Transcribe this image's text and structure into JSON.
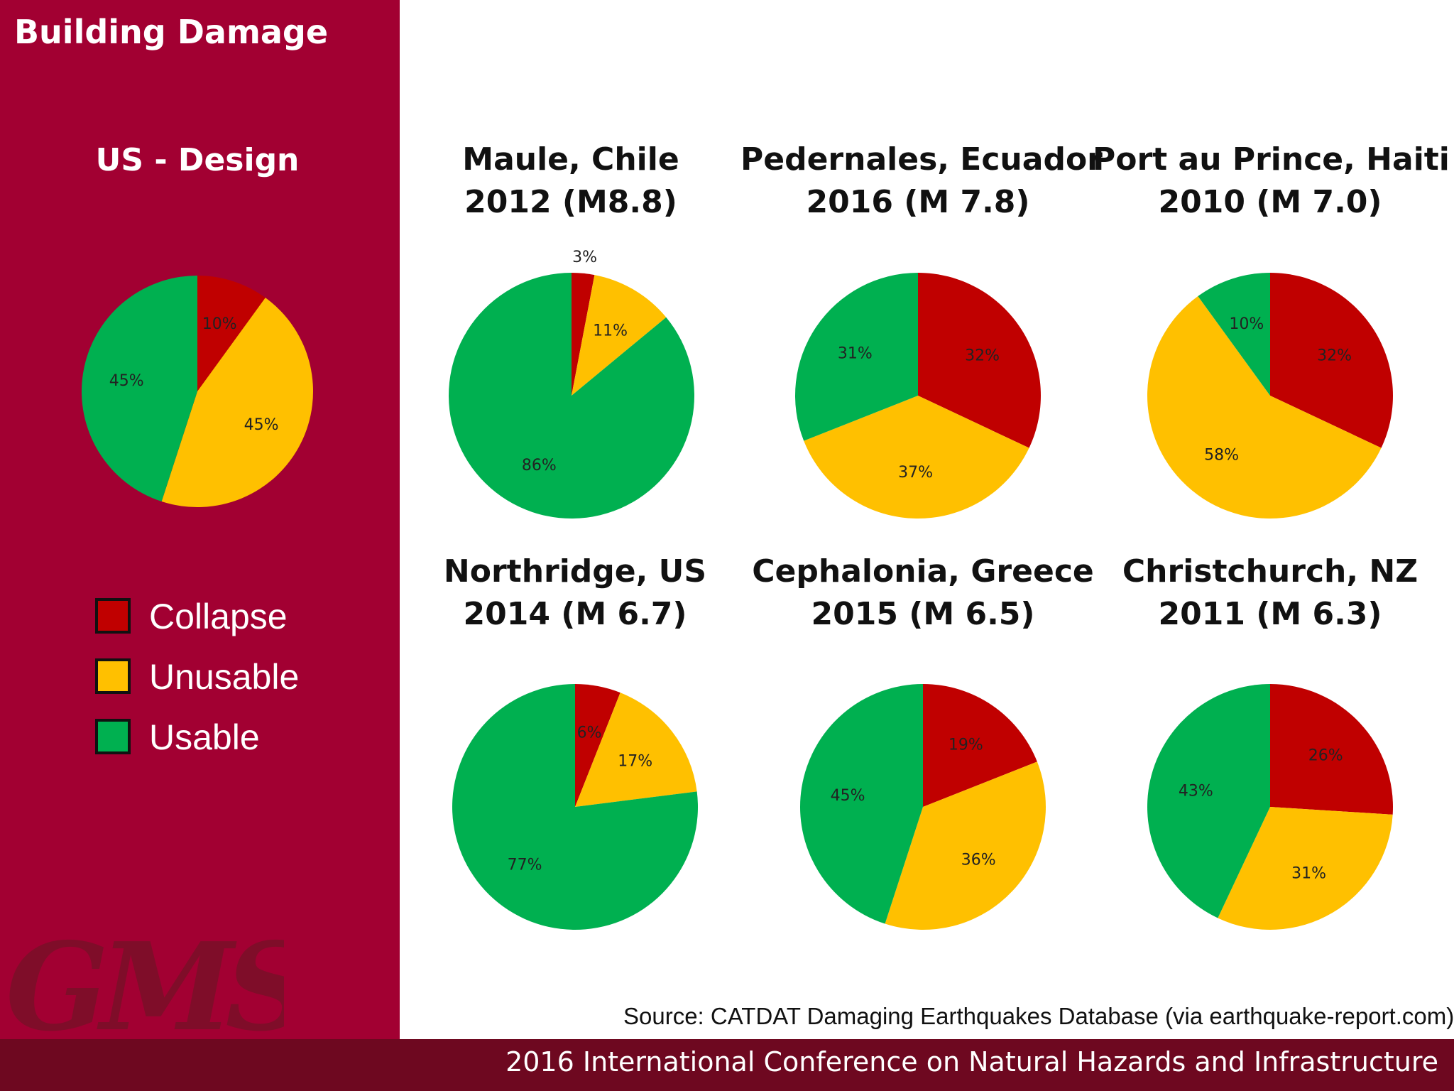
{
  "page_title": "Building Damage",
  "legend": [
    {
      "label": "Collapse",
      "color": "#c00000"
    },
    {
      "label": "Unusable",
      "color": "#ffc000"
    },
    {
      "label": "Usable",
      "color": "#00b050"
    }
  ],
  "source": "Source: CATDAT Damaging Earthquakes Database (via earthquake-report.com)",
  "footer": "2016 International Conference on Natural Hazards and Infrastructure",
  "logo_text": "GMS",
  "chart_data": [
    {
      "type": "pie",
      "title": "US - Design",
      "title_lines": [
        "US - Design"
      ],
      "categories": [
        "Collapse",
        "Unusable",
        "Usable"
      ],
      "values": [
        10,
        45,
        45
      ],
      "labels": [
        "10%",
        "45%",
        "45%"
      ]
    },
    {
      "type": "pie",
      "title": "Maule, Chile 2012 (M8.8)",
      "title_lines": [
        "Maule, Chile",
        "2012 (M8.8)"
      ],
      "categories": [
        "Collapse",
        "Unusable",
        "Usable"
      ],
      "values": [
        3,
        11,
        86
      ],
      "labels": [
        "3%",
        "11%",
        "86%"
      ]
    },
    {
      "type": "pie",
      "title": "Pedernales, Ecuador 2016 (M 7.8)",
      "title_lines": [
        "Pedernales, Ecuador",
        "2016 (M 7.8)"
      ],
      "categories": [
        "Collapse",
        "Unusable",
        "Usable"
      ],
      "values": [
        32,
        37,
        31
      ],
      "labels": [
        "32%",
        "37%",
        "31%"
      ]
    },
    {
      "type": "pie",
      "title": "Port au Prince, Haiti 2010 (M 7.0)",
      "title_lines": [
        "Port au Prince, Haiti",
        "2010 (M 7.0)"
      ],
      "categories": [
        "Collapse",
        "Unusable",
        "Usable"
      ],
      "values": [
        32,
        58,
        10
      ],
      "labels": [
        "32%",
        "58%",
        "10%"
      ]
    },
    {
      "type": "pie",
      "title": "Northridge, US 2014 (M 6.7)",
      "title_lines": [
        "Northridge, US",
        "2014 (M 6.7)"
      ],
      "categories": [
        "Collapse",
        "Unusable",
        "Usable"
      ],
      "values": [
        6,
        17,
        77
      ],
      "labels": [
        "6%",
        "17%",
        "77%"
      ]
    },
    {
      "type": "pie",
      "title": "Cephalonia, Greece 2015 (M 6.5)",
      "title_lines": [
        "Cephalonia, Greece",
        "2015 (M 6.5)"
      ],
      "categories": [
        "Collapse",
        "Unusable",
        "Usable"
      ],
      "values": [
        19,
        36,
        45
      ],
      "labels": [
        "19%",
        "36%",
        "45%"
      ]
    },
    {
      "type": "pie",
      "title": "Christchurch, NZ 2011 (M 6.3)",
      "title_lines": [
        "Christchurch, NZ",
        "2011 (M 6.3)"
      ],
      "categories": [
        "Collapse",
        "Unusable",
        "Usable"
      ],
      "values": [
        26,
        31,
        43
      ],
      "labels": [
        "26%",
        "31%",
        "43%"
      ]
    }
  ]
}
